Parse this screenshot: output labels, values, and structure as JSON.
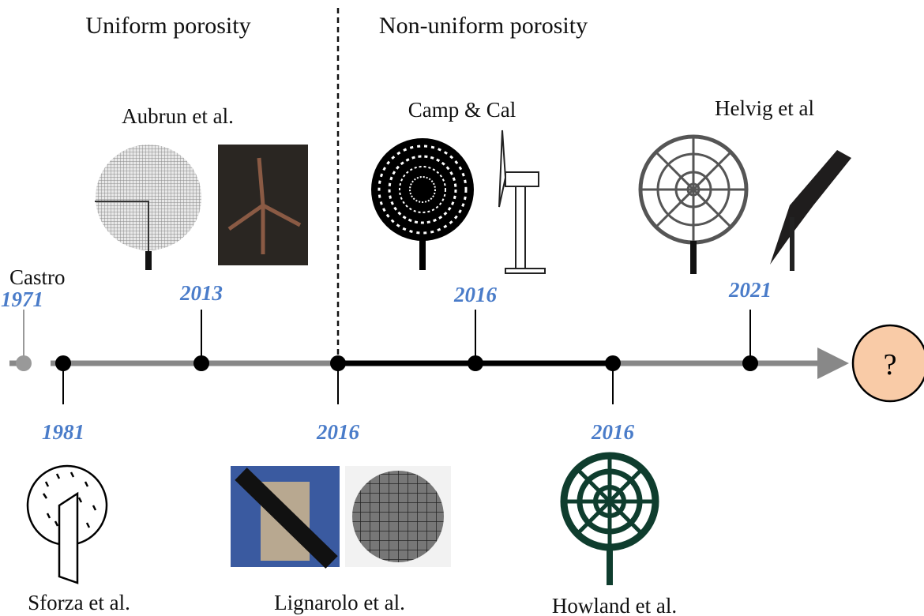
{
  "sections": [
    "Uniform porosity",
    "Non-uniform porosity"
  ],
  "events": [
    {
      "label": "Castro",
      "year": "1971"
    },
    {
      "label": "Sforza et al.",
      "year": "1981"
    },
    {
      "label": "Aubrun et al.",
      "year": "2013"
    },
    {
      "label": "Lignarolo et al.",
      "year": "2016"
    },
    {
      "label": "Camp & Cal",
      "year": "2016"
    },
    {
      "label": "Howland et al.",
      "year": "2016"
    },
    {
      "label": "Helvig et al",
      "year": "2021"
    }
  ],
  "future": "?"
}
